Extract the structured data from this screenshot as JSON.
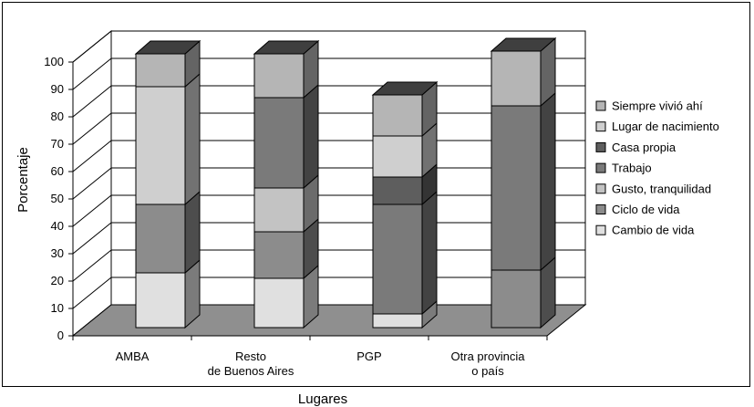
{
  "chart_data": {
    "type": "bar",
    "stacked": true,
    "style": "3d",
    "ylabel": "Porcentaje",
    "xlabel": "Lugares",
    "ylim": [
      0,
      100
    ],
    "yticks": [
      "0",
      "10",
      "20",
      "30",
      "40",
      "50",
      "60",
      "70",
      "80",
      "90",
      "100"
    ],
    "categories": [
      [
        "AMBA"
      ],
      [
        "Resto",
        "de Buenos Aires"
      ],
      [
        "PGP"
      ],
      [
        "Otra provincia",
        "o país"
      ]
    ],
    "series": [
      {
        "name": "Cambio de vida",
        "color": "#e0e0e0",
        "values": [
          20,
          18,
          5,
          0
        ]
      },
      {
        "name": "Ciclo de vida",
        "color": "#8c8c8c",
        "values": [
          25,
          17,
          0,
          21
        ]
      },
      {
        "name": "Gusto, tranquilidad",
        "color": "#c3c3c3",
        "values": [
          0,
          16,
          0,
          0
        ]
      },
      {
        "name": "Trabajo",
        "color": "#7a7a7a",
        "values": [
          0,
          33,
          40,
          60
        ]
      },
      {
        "name": "Casa propia",
        "color": "#5e5e5e",
        "values": [
          0,
          0,
          10,
          0
        ]
      },
      {
        "name": "Lugar de nacimiento",
        "color": "#cfcfcf",
        "values": [
          43,
          0,
          15,
          0
        ]
      },
      {
        "name": "Siempre vivió ahí",
        "color": "#b5b5b5",
        "values": [
          12,
          16,
          15,
          20
        ]
      }
    ],
    "legend_order": [
      "Siempre vivió ahí",
      "Lugar de nacimiento",
      "Casa propia",
      "Trabajo",
      "Gusto, tranquilidad",
      "Ciclo de vida",
      "Cambio de vida"
    ],
    "legend_position": "right",
    "grid": true
  }
}
